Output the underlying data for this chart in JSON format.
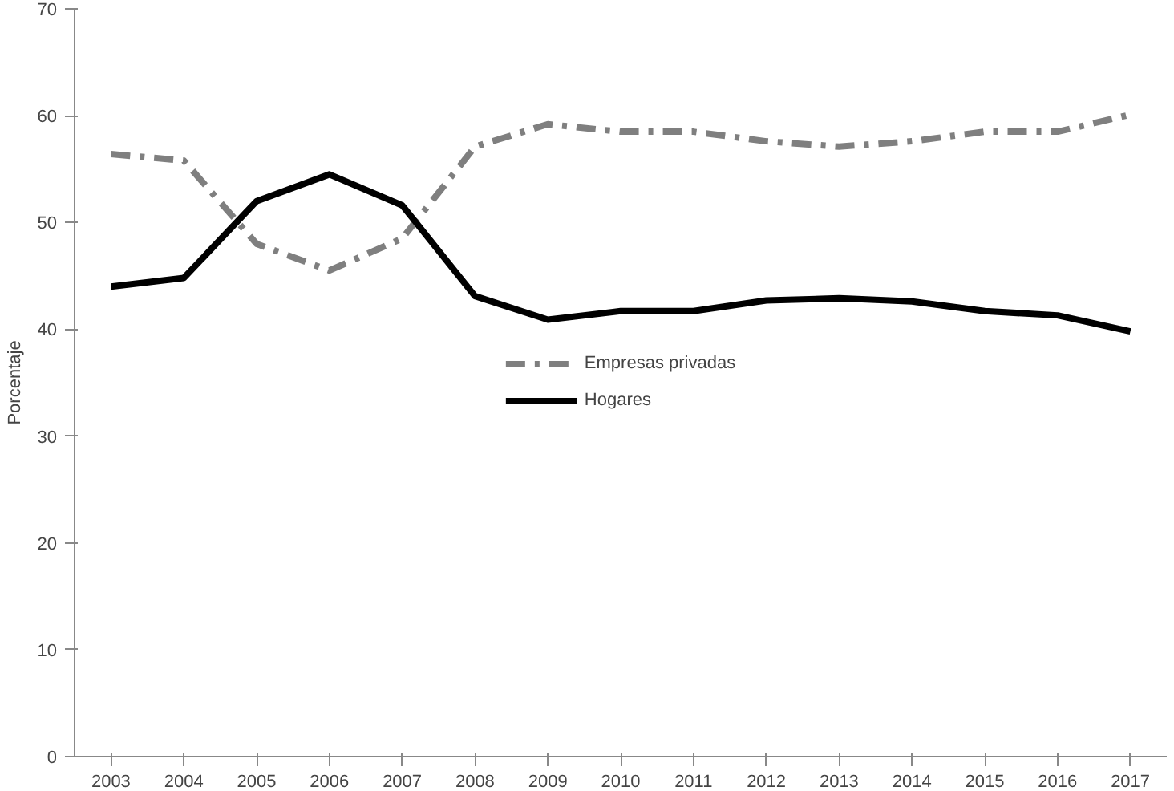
{
  "chart_data": {
    "type": "line",
    "ylabel": "Porcentaje",
    "categories": [
      "2003",
      "2004",
      "2005",
      "2006",
      "2007",
      "2008",
      "2009",
      "2010",
      "2011",
      "2012",
      "2013",
      "2014",
      "2015",
      "2016",
      "2017"
    ],
    "series": [
      {
        "name": "Empresas privadas",
        "color": "#7f7f7f",
        "line_style": "dashed",
        "values": [
          56.4,
          55.8,
          48,
          45.5,
          48.5,
          57.1,
          59.2,
          58.5,
          58.5,
          57.6,
          57.1,
          57.6,
          58.5,
          58.5,
          60.1
        ]
      },
      {
        "name": "Hogares",
        "color": "#000000",
        "line_style": "solid",
        "values": [
          44,
          44.8,
          52,
          54.5,
          51.6,
          43.1,
          40.9,
          41.7,
          41.7,
          42.7,
          42.9,
          42.6,
          41.7,
          41.3,
          39.8
        ]
      }
    ],
    "ylim": [
      0,
      70
    ],
    "yticks": [
      0,
      10,
      20,
      30,
      40,
      50,
      60,
      70
    ],
    "grid": false,
    "legend": "center",
    "marker": "none"
  }
}
